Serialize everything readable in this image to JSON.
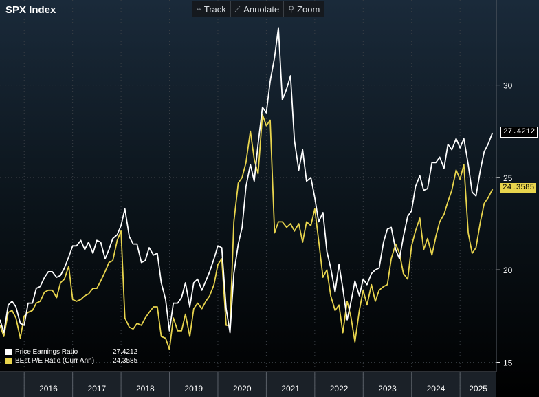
{
  "title": "SPX Index",
  "toolbar": {
    "track": {
      "label": "Track",
      "icon": "crosshair-icon"
    },
    "annotate": {
      "label": "Annotate",
      "icon": "pencil-icon"
    },
    "zoom": {
      "label": "Zoom",
      "icon": "magnifier-icon"
    }
  },
  "colors": {
    "background": "#000000",
    "pe_line": "#ffffff",
    "best_pe_line": "#e8d44d",
    "grid": "#3a3f45",
    "axis_text": "#ffffff"
  },
  "chart_data": {
    "type": "line",
    "title": "SPX Index",
    "xlabel": "",
    "ylabel": "",
    "ylim": [
      14.5,
      34.6
    ],
    "xlim": [
      2015.5,
      2025.75
    ],
    "y_ticks": [
      15,
      20,
      25,
      30
    ],
    "x_tick_labels": [
      "2016",
      "2017",
      "2018",
      "2019",
      "2020",
      "2021",
      "2022",
      "2023",
      "2024",
      "2025"
    ],
    "grid": true,
    "legend_position": "bottom-left",
    "series": [
      {
        "name": "Price Earnings Ratio",
        "last_value": "27.4212",
        "color": "#ffffff",
        "points": [
          [
            2015.5,
            17.3
          ],
          [
            2015.58,
            16.6
          ],
          [
            2015.67,
            18.1
          ],
          [
            2015.75,
            18.3
          ],
          [
            2015.83,
            18.0
          ],
          [
            2015.92,
            17.1
          ],
          [
            2016.0,
            17.0
          ],
          [
            2016.08,
            18.2
          ],
          [
            2016.17,
            18.2
          ],
          [
            2016.25,
            19.0
          ],
          [
            2016.33,
            19.1
          ],
          [
            2016.42,
            19.6
          ],
          [
            2016.5,
            19.9
          ],
          [
            2016.58,
            19.9
          ],
          [
            2016.67,
            19.6
          ],
          [
            2016.75,
            19.7
          ],
          [
            2016.83,
            20.1
          ],
          [
            2016.92,
            20.7
          ],
          [
            2017.0,
            21.3
          ],
          [
            2017.08,
            21.3
          ],
          [
            2017.17,
            21.6
          ],
          [
            2017.25,
            21.1
          ],
          [
            2017.33,
            21.5
          ],
          [
            2017.42,
            20.9
          ],
          [
            2017.5,
            21.6
          ],
          [
            2017.58,
            21.5
          ],
          [
            2017.67,
            20.6
          ],
          [
            2017.75,
            21.1
          ],
          [
            2017.83,
            21.7
          ],
          [
            2017.92,
            21.9
          ],
          [
            2018.0,
            22.4
          ],
          [
            2018.08,
            23.3
          ],
          [
            2018.17,
            21.8
          ],
          [
            2018.25,
            21.4
          ],
          [
            2018.33,
            21.4
          ],
          [
            2018.42,
            20.4
          ],
          [
            2018.5,
            20.5
          ],
          [
            2018.58,
            21.2
          ],
          [
            2018.67,
            20.8
          ],
          [
            2018.75,
            20.9
          ],
          [
            2018.83,
            19.3
          ],
          [
            2018.92,
            18.4
          ],
          [
            2019.0,
            16.7
          ],
          [
            2019.08,
            18.2
          ],
          [
            2019.17,
            18.2
          ],
          [
            2019.25,
            18.5
          ],
          [
            2019.33,
            19.3
          ],
          [
            2019.42,
            18.0
          ],
          [
            2019.5,
            19.3
          ],
          [
            2019.58,
            19.5
          ],
          [
            2019.67,
            18.9
          ],
          [
            2019.75,
            19.4
          ],
          [
            2019.83,
            19.9
          ],
          [
            2019.92,
            20.6
          ],
          [
            2020.0,
            21.3
          ],
          [
            2020.08,
            21.2
          ],
          [
            2020.17,
            17.9
          ],
          [
            2020.25,
            16.6
          ],
          [
            2020.33,
            19.8
          ],
          [
            2020.42,
            21.4
          ],
          [
            2020.5,
            22.3
          ],
          [
            2020.58,
            24.5
          ],
          [
            2020.67,
            25.7
          ],
          [
            2020.75,
            24.8
          ],
          [
            2020.83,
            26.8
          ],
          [
            2020.92,
            28.8
          ],
          [
            2021.0,
            28.5
          ],
          [
            2021.08,
            30.2
          ],
          [
            2021.17,
            31.5
          ],
          [
            2021.25,
            33.1
          ],
          [
            2021.33,
            29.2
          ],
          [
            2021.42,
            29.8
          ],
          [
            2021.5,
            30.5
          ],
          [
            2021.58,
            27.0
          ],
          [
            2021.67,
            25.4
          ],
          [
            2021.75,
            26.5
          ],
          [
            2021.83,
            24.8
          ],
          [
            2021.92,
            25.0
          ],
          [
            2022.0,
            23.9
          ],
          [
            2022.08,
            22.6
          ],
          [
            2022.17,
            23.1
          ],
          [
            2022.25,
            21.0
          ],
          [
            2022.33,
            20.1
          ],
          [
            2022.42,
            18.8
          ],
          [
            2022.5,
            20.3
          ],
          [
            2022.58,
            19.0
          ],
          [
            2022.67,
            17.3
          ],
          [
            2022.75,
            18.3
          ],
          [
            2022.83,
            19.4
          ],
          [
            2022.92,
            18.6
          ],
          [
            2023.0,
            19.5
          ],
          [
            2023.08,
            19.2
          ],
          [
            2023.17,
            19.8
          ],
          [
            2023.25,
            20.0
          ],
          [
            2023.33,
            20.1
          ],
          [
            2023.42,
            21.5
          ],
          [
            2023.5,
            22.2
          ],
          [
            2023.58,
            22.3
          ],
          [
            2023.67,
            21.1
          ],
          [
            2023.75,
            20.6
          ],
          [
            2023.83,
            21.8
          ],
          [
            2023.92,
            22.9
          ],
          [
            2024.0,
            23.2
          ],
          [
            2024.08,
            24.5
          ],
          [
            2024.17,
            25.1
          ],
          [
            2024.25,
            24.3
          ],
          [
            2024.33,
            24.4
          ],
          [
            2024.42,
            25.8
          ],
          [
            2024.5,
            25.8
          ],
          [
            2024.58,
            26.1
          ],
          [
            2024.67,
            25.5
          ],
          [
            2024.75,
            26.8
          ],
          [
            2024.83,
            26.5
          ],
          [
            2024.92,
            27.1
          ],
          [
            2025.0,
            26.6
          ],
          [
            2025.08,
            27.1
          ],
          [
            2025.17,
            25.7
          ],
          [
            2025.25,
            24.2
          ],
          [
            2025.33,
            24.0
          ],
          [
            2025.42,
            25.4
          ],
          [
            2025.5,
            26.4
          ],
          [
            2025.58,
            26.8
          ],
          [
            2025.67,
            27.42
          ]
        ]
      },
      {
        "name": "BEst P/E Ratio (Curr Ann)",
        "last_value": "24.3585",
        "color": "#e8d44d",
        "points": [
          [
            2015.5,
            17.0
          ],
          [
            2015.58,
            16.4
          ],
          [
            2015.67,
            17.7
          ],
          [
            2015.75,
            17.8
          ],
          [
            2015.83,
            17.4
          ],
          [
            2015.92,
            16.3
          ],
          [
            2016.0,
            17.5
          ],
          [
            2016.08,
            17.7
          ],
          [
            2016.17,
            17.8
          ],
          [
            2016.25,
            18.2
          ],
          [
            2016.33,
            18.3
          ],
          [
            2016.42,
            18.8
          ],
          [
            2016.5,
            18.9
          ],
          [
            2016.58,
            18.9
          ],
          [
            2016.67,
            18.5
          ],
          [
            2016.75,
            19.3
          ],
          [
            2016.83,
            19.5
          ],
          [
            2016.92,
            20.2
          ],
          [
            2017.0,
            18.4
          ],
          [
            2017.08,
            18.3
          ],
          [
            2017.17,
            18.4
          ],
          [
            2017.25,
            18.6
          ],
          [
            2017.33,
            18.7
          ],
          [
            2017.42,
            19.0
          ],
          [
            2017.5,
            19.0
          ],
          [
            2017.58,
            19.4
          ],
          [
            2017.67,
            19.9
          ],
          [
            2017.75,
            20.4
          ],
          [
            2017.83,
            20.5
          ],
          [
            2017.92,
            21.6
          ],
          [
            2018.0,
            22.1
          ],
          [
            2018.08,
            17.4
          ],
          [
            2018.17,
            16.9
          ],
          [
            2018.25,
            16.8
          ],
          [
            2018.33,
            17.1
          ],
          [
            2018.42,
            17.0
          ],
          [
            2018.5,
            17.4
          ],
          [
            2018.58,
            17.7
          ],
          [
            2018.67,
            18.0
          ],
          [
            2018.75,
            18.0
          ],
          [
            2018.83,
            16.4
          ],
          [
            2018.92,
            16.3
          ],
          [
            2019.0,
            15.7
          ],
          [
            2019.08,
            17.4
          ],
          [
            2019.17,
            16.7
          ],
          [
            2019.25,
            16.7
          ],
          [
            2019.33,
            17.6
          ],
          [
            2019.42,
            16.4
          ],
          [
            2019.5,
            17.9
          ],
          [
            2019.58,
            18.2
          ],
          [
            2019.67,
            17.9
          ],
          [
            2019.75,
            18.3
          ],
          [
            2019.83,
            18.6
          ],
          [
            2019.92,
            19.2
          ],
          [
            2020.0,
            20.3
          ],
          [
            2020.08,
            20.6
          ],
          [
            2020.17,
            17.0
          ],
          [
            2020.25,
            17.0
          ],
          [
            2020.33,
            22.6
          ],
          [
            2020.42,
            24.7
          ],
          [
            2020.5,
            25.0
          ],
          [
            2020.58,
            25.8
          ],
          [
            2020.67,
            27.5
          ],
          [
            2020.75,
            26.0
          ],
          [
            2020.83,
            25.2
          ],
          [
            2020.92,
            28.4
          ],
          [
            2021.0,
            27.8
          ],
          [
            2021.08,
            28.1
          ],
          [
            2021.17,
            22.0
          ],
          [
            2021.25,
            22.6
          ],
          [
            2021.33,
            22.6
          ],
          [
            2021.42,
            22.3
          ],
          [
            2021.5,
            22.5
          ],
          [
            2021.58,
            22.1
          ],
          [
            2021.67,
            22.5
          ],
          [
            2021.75,
            21.5
          ],
          [
            2021.83,
            22.6
          ],
          [
            2021.92,
            22.4
          ],
          [
            2022.0,
            23.3
          ],
          [
            2022.08,
            21.6
          ],
          [
            2022.17,
            19.6
          ],
          [
            2022.25,
            20.0
          ],
          [
            2022.33,
            18.6
          ],
          [
            2022.42,
            17.8
          ],
          [
            2022.5,
            18.1
          ],
          [
            2022.58,
            16.6
          ],
          [
            2022.67,
            18.3
          ],
          [
            2022.75,
            17.4
          ],
          [
            2022.83,
            16.1
          ],
          [
            2022.92,
            17.8
          ],
          [
            2023.0,
            18.9
          ],
          [
            2023.08,
            18.1
          ],
          [
            2023.17,
            19.2
          ],
          [
            2023.25,
            18.3
          ],
          [
            2023.33,
            18.9
          ],
          [
            2023.42,
            19.1
          ],
          [
            2023.5,
            19.2
          ],
          [
            2023.58,
            20.6
          ],
          [
            2023.67,
            21.4
          ],
          [
            2023.75,
            20.9
          ],
          [
            2023.83,
            19.8
          ],
          [
            2023.92,
            19.5
          ],
          [
            2024.0,
            21.3
          ],
          [
            2024.08,
            22.1
          ],
          [
            2024.17,
            22.8
          ],
          [
            2024.25,
            21.1
          ],
          [
            2024.33,
            21.7
          ],
          [
            2024.42,
            20.8
          ],
          [
            2024.5,
            21.8
          ],
          [
            2024.58,
            22.6
          ],
          [
            2024.67,
            23.0
          ],
          [
            2024.75,
            23.7
          ],
          [
            2024.83,
            24.3
          ],
          [
            2024.92,
            25.4
          ],
          [
            2025.0,
            24.9
          ],
          [
            2025.08,
            25.7
          ],
          [
            2025.17,
            22.0
          ],
          [
            2025.25,
            20.9
          ],
          [
            2025.33,
            21.2
          ],
          [
            2025.42,
            22.6
          ],
          [
            2025.5,
            23.6
          ],
          [
            2025.58,
            23.9
          ],
          [
            2025.67,
            24.36
          ]
        ]
      }
    ]
  }
}
